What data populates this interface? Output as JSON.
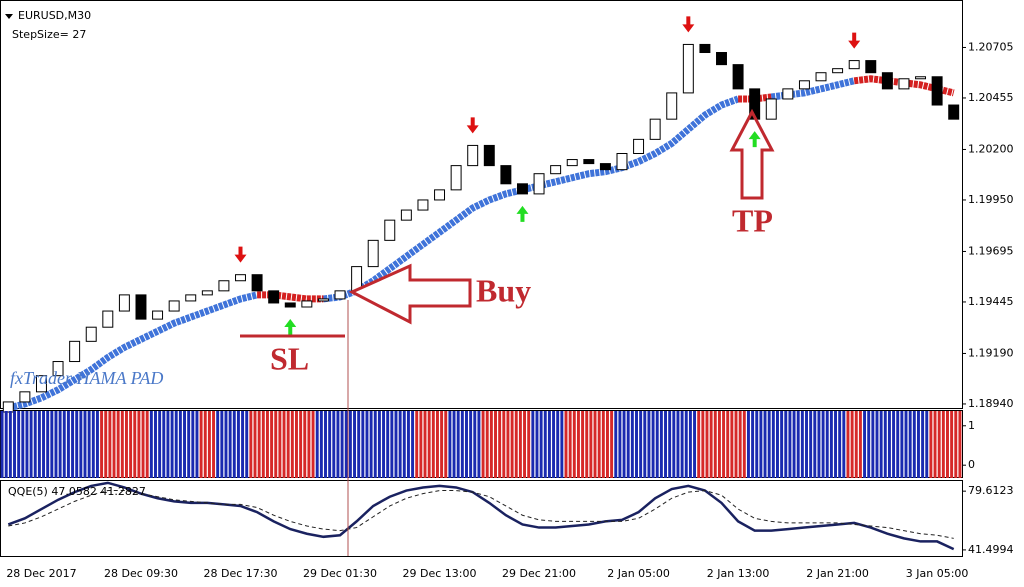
{
  "chart_data": [
    {
      "type": "candlestick",
      "title": "EURUSD,M30",
      "subtitle": "StepSize= 27",
      "watermark": "fxTrader HAMA PAD",
      "categories": [
        null,
        null,
        "28 Dec 2017",
        null,
        null,
        null,
        null,
        null,
        "28 Dec 09:30",
        null,
        null,
        null,
        null,
        null,
        "28 Dec 17:30",
        null,
        null,
        null,
        null,
        null,
        "29 Dec 01:30",
        null,
        null,
        null,
        null,
        null,
        "29 Dec 13:00",
        null,
        null,
        null,
        null,
        null,
        "29 Dec 21:00",
        null,
        null,
        null,
        null,
        null,
        "2 Jan 05:00",
        null,
        null,
        null,
        null,
        null,
        "2 Jan 13:00",
        null,
        null,
        null,
        null,
        null,
        "2 Jan 21:00",
        null,
        null,
        null,
        null,
        null,
        "3 Jan 05:00",
        null
      ],
      "open": [
        1.189,
        1.1895,
        1.19,
        1.1908,
        1.1915,
        1.1925,
        1.1932,
        1.194,
        1.1948,
        1.1936,
        1.194,
        1.1945,
        1.1948,
        1.195,
        1.1955,
        1.1958,
        1.195,
        1.1944,
        1.1942,
        1.1945,
        1.1946,
        1.195,
        1.1962,
        1.1975,
        1.1985,
        1.199,
        1.1995,
        1.2,
        1.2012,
        1.2022,
        1.2012,
        1.2003,
        1.1998,
        1.2008,
        1.2012,
        1.2015,
        1.2013,
        1.201,
        1.2018,
        1.2025,
        1.2035,
        1.2048,
        1.2072,
        1.2068,
        1.2062,
        1.205,
        1.2035,
        1.2045,
        1.205,
        1.2054,
        1.2058,
        1.206,
        1.2064,
        1.2058,
        1.205,
        1.2055,
        1.2056,
        1.2042
      ],
      "close": [
        1.1895,
        1.19,
        1.1908,
        1.1915,
        1.1925,
        1.1932,
        1.194,
        1.1948,
        1.1936,
        1.194,
        1.1945,
        1.1948,
        1.195,
        1.1955,
        1.1958,
        1.195,
        1.1944,
        1.1942,
        1.1945,
        1.1946,
        1.195,
        1.1962,
        1.1975,
        1.1985,
        1.199,
        1.1995,
        1.2,
        1.2012,
        1.2022,
        1.2012,
        1.2003,
        1.1998,
        1.2008,
        1.2012,
        1.2015,
        1.2013,
        1.201,
        1.2018,
        1.2025,
        1.2035,
        1.2048,
        1.2072,
        1.2068,
        1.2062,
        1.205,
        1.2035,
        1.2045,
        1.205,
        1.2054,
        1.2058,
        1.206,
        1.2064,
        1.2058,
        1.205,
        1.2055,
        1.2056,
        1.2042,
        1.2035
      ],
      "up_color": "#ffffff",
      "down_color": "#000000",
      "hama": [
        {
          "color": "#3f73d9",
          "values": [
            1.1892,
            1.1894,
            1.1897,
            1.1901,
            1.1906,
            1.1911,
            1.1917,
            1.1922,
            1.1926,
            1.193,
            1.1934,
            1.1937,
            1.194,
            1.1943,
            1.1946,
            1.1948,
            null,
            null,
            null,
            1.1946,
            1.1947,
            1.195,
            1.1955,
            1.1961,
            1.1967,
            1.1973,
            1.1979,
            1.1985,
            1.1991,
            1.1995,
            1.1998,
            1.2,
            1.2002,
            1.2004,
            1.2006,
            1.2008,
            1.2009,
            1.2011,
            1.2014,
            1.2018,
            1.2023,
            1.203,
            1.2037,
            1.2042,
            1.2045,
            null,
            1.2046,
            1.2047,
            1.2048,
            1.205,
            1.2052,
            1.2054,
            null,
            null,
            null,
            null,
            null,
            null
          ]
        },
        {
          "color": "#d42020",
          "values": [
            null,
            null,
            null,
            null,
            null,
            null,
            null,
            null,
            null,
            null,
            null,
            null,
            null,
            null,
            null,
            1.1948,
            1.1948,
            1.1947,
            1.1946,
            1.1946,
            null,
            null,
            null,
            null,
            null,
            null,
            null,
            null,
            null,
            null,
            null,
            null,
            null,
            null,
            null,
            null,
            null,
            null,
            null,
            null,
            null,
            null,
            null,
            null,
            1.2045,
            1.2045,
            1.2046,
            null,
            null,
            null,
            null,
            1.2054,
            1.2055,
            1.2054,
            1.2053,
            1.2052,
            1.205,
            1.2048
          ]
        }
      ],
      "buy_signals": [
        17,
        31,
        45
      ],
      "sell_signals": [
        14,
        28,
        41,
        51
      ],
      "buy_color": "#22dd22",
      "sell_color": "#dd1111",
      "annotations": [
        "Buy",
        "SL",
        "TP"
      ],
      "ylim": [
        1.18915,
        1.2094
      ],
      "yticks": [
        1.20705,
        1.20455,
        {
          "value": 1.202,
          "label": "1.20200"
        },
        {
          "value": 1.1995,
          "label": "1.19950"
        },
        1.19695,
        1.19445,
        {
          "value": 1.1919,
          "label": "1.19190"
        },
        {
          "value": 1.1894,
          "label": "1.18940"
        }
      ]
    },
    {
      "type": "stripes",
      "values": [
        1,
        1,
        1,
        1,
        1,
        1,
        0,
        0,
        0,
        1,
        1,
        1,
        0,
        1,
        1,
        0,
        0,
        0,
        0,
        1,
        1,
        1,
        1,
        1,
        1,
        0,
        0,
        1,
        1,
        0,
        0,
        0,
        1,
        1,
        0,
        0,
        0,
        1,
        1,
        1,
        1,
        1,
        0,
        0,
        0,
        1,
        1,
        1,
        1,
        1,
        1,
        0,
        1,
        1,
        1,
        1,
        0,
        0
      ],
      "colors": [
        "#d62828",
        "#1a2ab0"
      ],
      "ylim": [
        -0.325,
        1.375
      ],
      "yticks": [
        1,
        0
      ]
    },
    {
      "type": "line",
      "title": "QQE(5) 47.0582 41.2827",
      "series": [
        {
          "color": "#1a2260",
          "values": [
            58,
            62,
            68,
            74,
            79,
            83,
            85,
            82,
            78,
            75,
            73,
            72,
            72,
            71,
            70,
            66,
            60,
            55,
            52,
            50,
            51,
            60,
            70,
            76,
            80,
            82,
            83,
            82,
            79,
            72,
            64,
            58,
            56,
            56,
            57,
            58,
            60,
            61,
            66,
            75,
            81,
            83,
            80,
            72,
            60,
            54,
            54,
            55,
            56,
            57,
            58,
            59,
            56,
            52,
            49,
            47,
            47,
            42
          ]
        },
        {
          "color": "#222222",
          "dashed": true,
          "values": [
            57,
            59,
            63,
            68,
            73,
            77,
            80,
            80,
            78,
            76,
            74,
            73,
            72,
            71,
            71,
            69,
            64,
            60,
            57,
            55,
            54,
            56,
            63,
            70,
            75,
            78,
            80,
            80,
            79,
            76,
            70,
            64,
            61,
            60,
            60,
            60,
            60,
            60,
            62,
            68,
            75,
            79,
            80,
            77,
            68,
            62,
            60,
            59,
            59,
            59,
            59,
            58,
            57,
            56,
            54,
            52,
            51,
            49
          ]
        }
      ],
      "ylim": [
        36.9,
        86.2
      ],
      "yticks": [
        79.6123,
        41.4994
      ]
    }
  ]
}
